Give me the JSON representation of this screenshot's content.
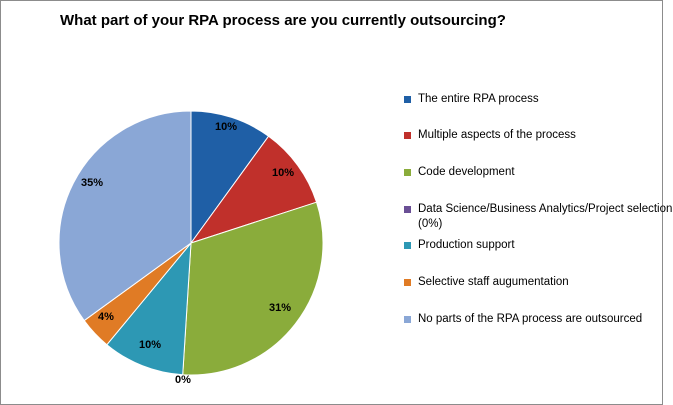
{
  "chart_data": {
    "type": "pie",
    "title": "What part of your RPA process are you currently outsourcing?",
    "slices": [
      {
        "name": "The entire RPA process",
        "value": 10,
        "label": "10%",
        "color": "#1f5fa6"
      },
      {
        "name": "Multiple aspects of the process",
        "value": 10,
        "label": "10%",
        "color": "#c0302b"
      },
      {
        "name": "Code development",
        "value": 31,
        "label": "31%",
        "color": "#8aac3b"
      },
      {
        "name": "Data Science/Business Analytics/Project selection (0%)",
        "value": 0,
        "label": "0%",
        "color": "#6a4f95"
      },
      {
        "name": "Production support",
        "value": 10,
        "label": "10%",
        "color": "#2d98b4"
      },
      {
        "name": "Selective staff augumentation",
        "value": 4,
        "label": "4%",
        "color": "#e07b25"
      },
      {
        "name": "No parts of the RPA process are outsourced",
        "value": 35,
        "label": "35%",
        "color": "#8aa7d6"
      }
    ],
    "legend_position": "right"
  }
}
